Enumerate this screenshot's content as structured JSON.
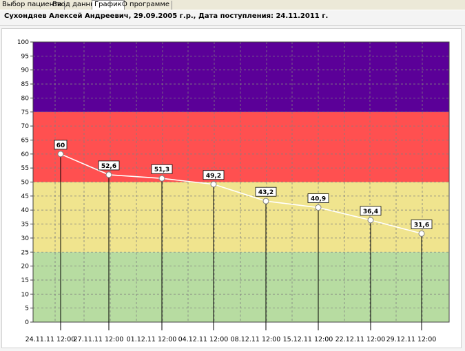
{
  "tabs": [
    {
      "label": "Выбор пациента",
      "active": false
    },
    {
      "label": "Ввод данных",
      "active": false
    },
    {
      "label": "График",
      "active": true
    },
    {
      "label": "О программе",
      "active": false
    }
  ],
  "header": {
    "text": "Сухондяев Алексей  Андреевич, 29.09.2005 г.р., Дата поступления: 24.11.2011 г."
  },
  "chart_data": {
    "type": "line",
    "x": [
      "24.11.11 12:00",
      "27.11.11 12:00",
      "01.12.11 12:00",
      "04.12.11 12:00",
      "08.12.11 12:00",
      "15.12.11 12:00",
      "22.12.11 12:00",
      "29.12.11 12:00"
    ],
    "values": [
      60,
      52.6,
      51.3,
      49.2,
      43.2,
      40.9,
      36.4,
      31.6
    ],
    "labels": [
      "60",
      "52,6",
      "51,3",
      "49,2",
      "43,2",
      "40,9",
      "36,4",
      "31,6"
    ],
    "ylim": [
      0,
      100
    ],
    "yticks": [
      "0",
      "5",
      "10",
      "15",
      "20",
      "25",
      "30",
      "35",
      "40",
      "45",
      "50",
      "55",
      "60",
      "65",
      "70",
      "75",
      "80",
      "85",
      "90",
      "95",
      "100"
    ],
    "grid": true,
    "zones": [
      {
        "from": 0,
        "to": 25,
        "color": "#b7dca1"
      },
      {
        "from": 25,
        "to": 50,
        "color": "#f0e48e"
      },
      {
        "from": 50,
        "to": 75,
        "color": "#ff5050"
      },
      {
        "from": 75,
        "to": 100,
        "color": "#5b0098"
      }
    ],
    "line_color": "#ffffff"
  }
}
